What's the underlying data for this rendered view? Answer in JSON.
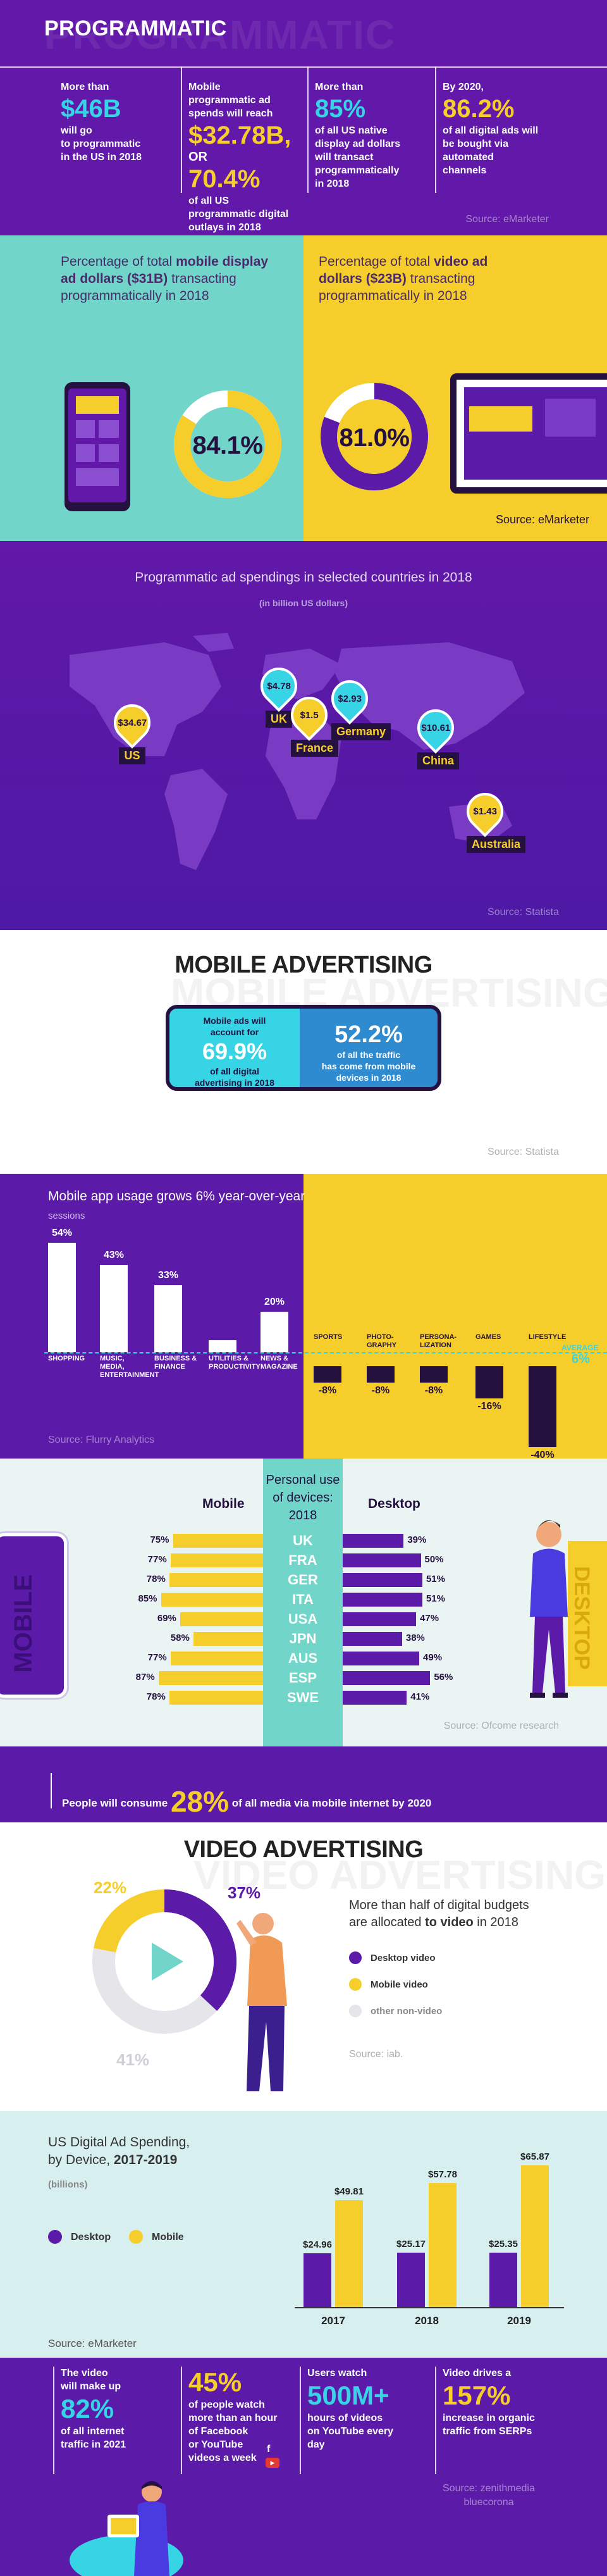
{
  "programmatic": {
    "title": "PROGRAMMATIC",
    "ghost": "PROGRAMMATIC",
    "col1": {
      "pre": "More than",
      "big": "$46B",
      "post": "will go\nto programmatic\nin the US in 2018"
    },
    "col2": {
      "pre": "Mobile\nprogrammatic ad\nspends will reach",
      "big": "$32.78B,",
      "or": "OR",
      "big2": "70.4%",
      "post": "of all US\nprogrammatic digital\noutlays in 2018"
    },
    "col3": {
      "pre": "More than",
      "big": "85%",
      "post": "of all US native\ndisplay ad dollars\nwill transact\nprogrammatically\nin 2018"
    },
    "col4": {
      "pre": "By 2020,",
      "big": "86.2%",
      "post": "of all digital ads will\nbe bought via\nautomated\nchannels"
    },
    "source": "Source: eMarketer"
  },
  "display": {
    "mobile_text_a": "Percentage of total ",
    "mobile_text_b": "mobile display ad dollars ($31B)",
    "mobile_text_c": " transacting programmatically in 2018",
    "mobile_pct": "84.1%",
    "mobile_value": 84.1,
    "video_text_a": "Percentage of total ",
    "video_text_b": "video ad dollars ($23B)",
    "video_text_c": " transacting programmatically in 2018",
    "video_pct": "81.0%",
    "video_value": 81.0,
    "source": "Source: eMarketer"
  },
  "map": {
    "heading": "Programmatic ad spendings in selected countries in 2018",
    "sub": "(in billion US dollars)",
    "pins": [
      {
        "value": "$34.67",
        "country": "US",
        "color": "#f6ce2c"
      },
      {
        "value": "$4.78",
        "country": "UK",
        "color": "#37d4e6"
      },
      {
        "value": "$1.5",
        "country": "France",
        "color": "#f6ce2c"
      },
      {
        "value": "$2.93",
        "country": "Germany",
        "color": "#37d4e6"
      },
      {
        "value": "$10.61",
        "country": "China",
        "color": "#37d4e6"
      },
      {
        "value": "$1.43",
        "country": "Australia",
        "color": "#f6ce2c"
      }
    ],
    "source": "Source: Statista"
  },
  "mobile_adv": {
    "title": "MOBILE ADVERTISING",
    "ghost": "MOBILE ADVERTISING",
    "left_pre": "Mobile ads will\naccount for",
    "left_big": "69.9%",
    "left_post": "of all digital\nadvertising in 2018",
    "right_big": "52.2%",
    "right_post": "of all the traffic\nhas come from mobile\ndevices in 2018",
    "source": "Source: Statista"
  },
  "app_usage": {
    "heading": "Mobile app usage grows 6% year-over-year",
    "sub": "sessions",
    "avg_label": "AVERAGE",
    "avg_value": "6%",
    "source": "Source: Flurry Analytics",
    "chart_data": {
      "type": "bar",
      "categories": [
        "SHOPPING",
        "MUSIC, MEDIA, ENTERTAINMENT",
        "BUSINESS & FINANCE",
        "UTILITIES & PRODUCTIVITY",
        "NEWS & MAGAZINE",
        "SPORTS",
        "PHOTO-GRAPHY",
        "PERSONA-LIZATION",
        "GAMES",
        "LIFESTYLE"
      ],
      "values": [
        54,
        43,
        33,
        6,
        20,
        -8,
        -8,
        -8,
        -16,
        -40
      ],
      "labels": [
        "54%",
        "43%",
        "33%",
        "",
        "20%",
        "-8%",
        "-8%",
        "-8%",
        "-16%",
        "-40%"
      ],
      "title": "Mobile app usage grows 6% year-over-year",
      "ylabel": "sessions"
    }
  },
  "personal_use": {
    "band_title": "Personal use of devices: 2018",
    "mobile_head": "Mobile",
    "desktop_head": "Desktop",
    "mobile_word": "MOBILE",
    "desktop_word": "DESKTOP",
    "source": "Source: Ofcome research",
    "chart_data": {
      "type": "bar",
      "categories": [
        "UK",
        "FRA",
        "GER",
        "ITA",
        "USA",
        "JPN",
        "AUS",
        "ESP",
        "SWE"
      ],
      "series": [
        {
          "name": "Mobile",
          "values": [
            75,
            77,
            78,
            85,
            69,
            58,
            77,
            87,
            78
          ]
        },
        {
          "name": "Desktop",
          "values": [
            39,
            50,
            51,
            51,
            47,
            38,
            49,
            56,
            41
          ]
        }
      ]
    }
  },
  "banner": {
    "pre": "People will consume ",
    "pct": "28%",
    "post": " of all media via mobile internet by 2020"
  },
  "video_adv": {
    "title": "VIDEO ADVERTISING",
    "ghost": "VIDEO ADVERTISING",
    "desc_a": "More than half of digital budgets\nare allocated ",
    "desc_b": "to video",
    "desc_c": " in 2018",
    "source": "Source: iab.",
    "chart_data": {
      "type": "pie",
      "categories": [
        "Desktop video",
        "Mobile video",
        "other non-video"
      ],
      "values": [
        37,
        22,
        41
      ],
      "labels": [
        "37%",
        "22%",
        "41%"
      ],
      "colors": [
        "#5c1aa8",
        "#f6ce2c",
        "#e6e6ea"
      ]
    }
  },
  "spend": {
    "heading_a": "US Digital Ad Spending,\nby Device, ",
    "heading_b": "2017-2019",
    "sub": "(billions)",
    "legend_desktop": "Desktop",
    "legend_mobile": "Mobile",
    "source": "Source: eMarketer",
    "chart_data": {
      "type": "bar",
      "categories": [
        "2017",
        "2018",
        "2019"
      ],
      "series": [
        {
          "name": "Desktop",
          "values": [
            24.96,
            25.17,
            25.35
          ],
          "labels": [
            "$24.96",
            "$25.17",
            "$25.35"
          ],
          "color": "#5c1aa8"
        },
        {
          "name": "Mobile",
          "values": [
            49.81,
            57.78,
            65.87
          ],
          "labels": [
            "$49.81",
            "$57.78",
            "$65.87"
          ],
          "color": "#f6ce2c"
        }
      ],
      "ylim": [
        0,
        70
      ]
    }
  },
  "footer": {
    "col1": {
      "pre": "The video\nwill make up",
      "big": "82%",
      "post": "of all internet\ntraffic in 2021"
    },
    "col2": {
      "big": "45%",
      "post": "of people watch\nmore than an hour\nof Facebook\nor YouTube\nvideos a week"
    },
    "col3": {
      "pre": "Users watch",
      "big": "500M+",
      "post": "hours of videos\non YouTube every\nday"
    },
    "col4": {
      "pre": "Video drives a",
      "big": "157%",
      "post": "increase in organic\ntraffic from SERPs"
    },
    "source": "Source: zenithmedia\nbluecorona"
  }
}
